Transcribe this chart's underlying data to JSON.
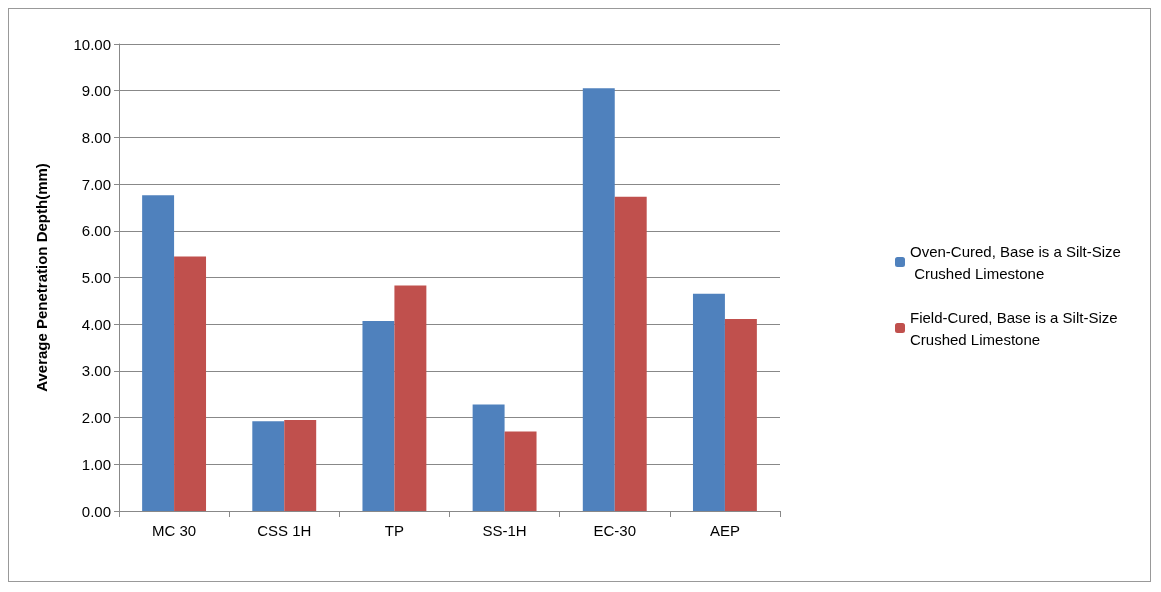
{
  "chart_data": {
    "type": "bar",
    "ylabel": "Average Penetration Depth(mm)",
    "categories": [
      "MC 30",
      "CSS 1H",
      "TP",
      "SS-1H",
      "EC-30",
      "AEP"
    ],
    "series": [
      {
        "name": "Oven-Cured, Base is a Silt-Size Crushed Limestone",
        "color": "#4f81bd",
        "values": [
          6.76,
          1.92,
          4.07,
          2.28,
          9.05,
          4.65
        ]
      },
      {
        "name": "Field-Cured, Base is a Silt-Size Crushed Limestone",
        "color": "#c0504d",
        "values": [
          5.45,
          1.95,
          4.83,
          1.7,
          6.73,
          4.11
        ]
      }
    ],
    "ylim": [
      0,
      10
    ],
    "yticks": [
      {
        "value": 0,
        "label": "0.00"
      },
      {
        "value": 1,
        "label": "1.00"
      },
      {
        "value": 2,
        "label": "2.00"
      },
      {
        "value": 3,
        "label": "3.00"
      },
      {
        "value": 4,
        "label": "4.00"
      },
      {
        "value": 5,
        "label": "5.00"
      },
      {
        "value": 6,
        "label": "6.00"
      },
      {
        "value": 7,
        "label": "7.00"
      },
      {
        "value": 8,
        "label": "8.00"
      },
      {
        "value": 9,
        "label": "9.00"
      },
      {
        "value": 10,
        "label": "10.00"
      }
    ],
    "grid": "y",
    "legend": "right"
  }
}
